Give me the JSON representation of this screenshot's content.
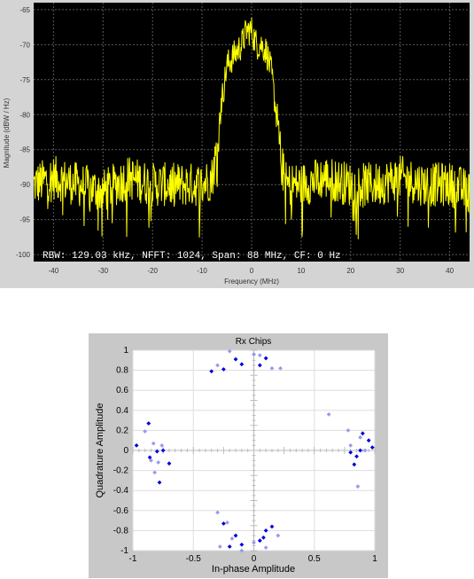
{
  "chart_data": [
    {
      "type": "line",
      "title": "",
      "xlabel": "Frequency (MHz)",
      "ylabel": "Magnitude (dBW / Hz)",
      "xlim": [
        -44,
        44
      ],
      "ylim": [
        -101,
        -64
      ],
      "x_ticks": [
        -40,
        -30,
        -20,
        -10,
        0,
        10,
        20,
        30,
        40
      ],
      "y_ticks": [
        -65,
        -70,
        -75,
        -80,
        -85,
        -90,
        -95,
        -100
      ],
      "grid": true,
      "background": "#000000",
      "line_color": "#ffff00",
      "annotation": "RBW: 129.03 kHz, NFFT: 1024, Span: 88 MHz, CF: 0 Hz",
      "series": [
        {
          "description_of_shape": "noise floor about -90 outside band, raised band about -70 between -7 and 6 MHz",
          "envelope_points": [
            [
              -44,
              -90
            ],
            [
              -40,
              -89
            ],
            [
              -35,
              -90
            ],
            [
              -30,
              -91
            ],
            [
              -25,
              -89
            ],
            [
              -20,
              -90
            ],
            [
              -15,
              -90
            ],
            [
              -10,
              -90
            ],
            [
              -8,
              -89
            ],
            [
              -7,
              -85
            ],
            [
              -6,
              -78
            ],
            [
              -5,
              -73
            ],
            [
              -4,
              -72
            ],
            [
              -3,
              -71
            ],
            [
              -2,
              -70
            ],
            [
              -1,
              -68
            ],
            [
              0,
              -68
            ],
            [
              1,
              -70
            ],
            [
              2,
              -70
            ],
            [
              3,
              -71
            ],
            [
              4,
              -74
            ],
            [
              5,
              -80
            ],
            [
              6,
              -87
            ],
            [
              7,
              -90
            ],
            [
              10,
              -90
            ],
            [
              15,
              -89
            ],
            [
              20,
              -90
            ],
            [
              25,
              -90
            ],
            [
              30,
              -89
            ],
            [
              35,
              -90
            ],
            [
              40,
              -90
            ],
            [
              44,
              -91
            ]
          ]
        }
      ]
    },
    {
      "type": "scatter",
      "title": "Rx Chips",
      "xlabel": "In-phase Amplitude",
      "ylabel": "Quadrature Amplitude",
      "xlim": [
        -1,
        1
      ],
      "ylim": [
        -1,
        1
      ],
      "x_ticks": [
        "-1",
        "-0.5",
        "0",
        "0.5",
        "1"
      ],
      "y_ticks": [
        "1",
        "0.8",
        "0.6",
        "0.4",
        "0.2",
        "0",
        "-0.2",
        "-0.4",
        "-0.6",
        "-0.8",
        "-1"
      ],
      "grid": true,
      "series": [
        {
          "color": "#0000dd",
          "points": [
            [
              -0.87,
              0.27
            ],
            [
              -0.8,
              -0.01
            ],
            [
              -0.78,
              -0.32
            ],
            [
              -0.86,
              -0.07
            ],
            [
              -0.75,
              0.0
            ],
            [
              -0.7,
              -0.13
            ],
            [
              -0.97,
              0.05
            ],
            [
              -0.35,
              0.79
            ],
            [
              -0.25,
              0.81
            ],
            [
              -0.15,
              0.91
            ],
            [
              0.1,
              0.92
            ],
            [
              0.05,
              0.85
            ],
            [
              -0.1,
              0.86
            ],
            [
              0.8,
              -0.02
            ],
            [
              0.85,
              -0.06
            ],
            [
              0.9,
              0.17
            ],
            [
              0.95,
              0.1
            ],
            [
              0.98,
              0.03
            ],
            [
              0.83,
              -0.14
            ],
            [
              0.88,
              0.0
            ],
            [
              -0.15,
              -0.85
            ],
            [
              -0.2,
              -0.96
            ],
            [
              -0.1,
              -0.94
            ],
            [
              0.1,
              -0.8
            ],
            [
              0.15,
              -0.76
            ],
            [
              0.05,
              -0.9
            ],
            [
              0.08,
              -0.87
            ],
            [
              -0.25,
              -0.73
            ]
          ]
        },
        {
          "color": "#9999ee",
          "points": [
            [
              -0.9,
              0.19
            ],
            [
              -0.83,
              0.07
            ],
            [
              -0.79,
              -0.12
            ],
            [
              -0.82,
              -0.22
            ],
            [
              -0.76,
              0.05
            ],
            [
              -0.85,
              -0.1
            ],
            [
              -0.2,
              0.99
            ],
            [
              0.0,
              0.96
            ],
            [
              0.15,
              0.82
            ],
            [
              0.22,
              0.82
            ],
            [
              -0.3,
              0.85
            ],
            [
              0.05,
              0.95
            ],
            [
              0.62,
              0.36
            ],
            [
              0.78,
              0.2
            ],
            [
              0.88,
              0.13
            ],
            [
              0.86,
              -0.36
            ],
            [
              0.92,
              0.0
            ],
            [
              0.8,
              0.05
            ],
            [
              -0.3,
              -0.62
            ],
            [
              -0.22,
              -0.72
            ],
            [
              -0.28,
              -0.96
            ],
            [
              -0.1,
              -1.0
            ],
            [
              0.0,
              -0.92
            ],
            [
              0.2,
              -0.85
            ],
            [
              0.1,
              -0.97
            ],
            [
              -0.18,
              -0.88
            ]
          ]
        }
      ]
    }
  ]
}
